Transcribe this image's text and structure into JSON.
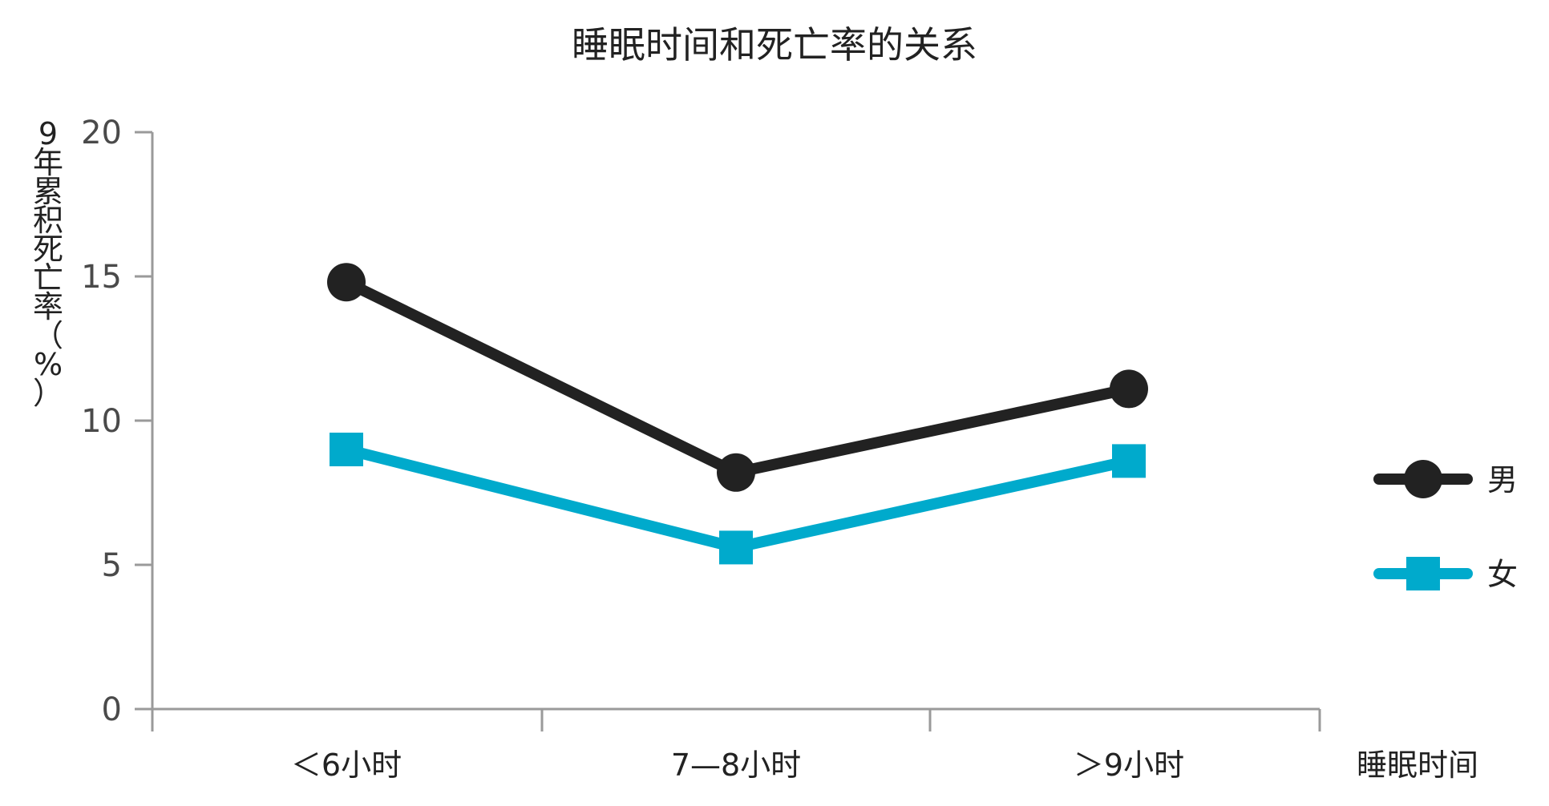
{
  "chart_data": {
    "type": "line",
    "title": "睡眠时间和死亡率的关系",
    "xlabel": "睡眠时间",
    "ylabel_chars": [
      "9",
      "年",
      "累",
      "积",
      "死",
      "亡",
      "率",
      "（",
      "%",
      "）"
    ],
    "categories": [
      "＜6小时",
      "7—8小时",
      "＞9小时"
    ],
    "y_ticks": [
      "0",
      "5",
      "10",
      "15",
      "20"
    ],
    "y_tick_values": [
      0,
      5,
      10,
      15,
      20
    ],
    "ylim": [
      0,
      20
    ],
    "grid": false,
    "legend_position": "right",
    "series": [
      {
        "name": "男",
        "values": [
          14.8,
          8.2,
          11.1
        ],
        "marker": "circle",
        "color": "#222222"
      },
      {
        "name": "女",
        "values": [
          9.0,
          5.6,
          8.6
        ],
        "marker": "square",
        "color": "#00aacc"
      }
    ]
  }
}
